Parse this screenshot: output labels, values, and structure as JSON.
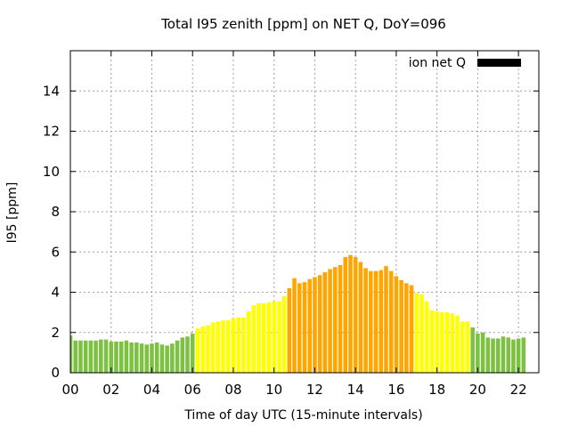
{
  "chart_data": {
    "type": "bar",
    "title": "Total I95 zenith [ppm] on NET Q, DoY=096",
    "xlabel": "Time of day UTC (15-minute intervals)",
    "ylabel": "I95 [ppm]",
    "legend": {
      "label": "ion net Q",
      "placement": "top-right",
      "color": "#000000"
    },
    "xlim": [
      0,
      23
    ],
    "ylim": [
      0,
      16
    ],
    "grid": true,
    "bar_interval_hours": 0.25,
    "x_tick_labels": [
      "00",
      "02",
      "04",
      "06",
      "08",
      "10",
      "12",
      "14",
      "16",
      "18",
      "20",
      "22"
    ],
    "x_tick_values": [
      0,
      2,
      4,
      6,
      8,
      10,
      12,
      14,
      16,
      18,
      20,
      22
    ],
    "y_tick_labels": [
      "0",
      "2",
      "4",
      "6",
      "8",
      "10",
      "12",
      "14"
    ],
    "y_tick_values": [
      0,
      2,
      4,
      6,
      8,
      10,
      12,
      14
    ],
    "color_levels": {
      "green": "#7dc142",
      "yellow": "#ffff00",
      "orange": "#ffa500"
    },
    "values": [
      1.85,
      1.6,
      1.6,
      1.6,
      1.6,
      1.6,
      1.65,
      1.65,
      1.55,
      1.55,
      1.55,
      1.6,
      1.5,
      1.5,
      1.45,
      1.4,
      1.45,
      1.5,
      1.4,
      1.35,
      1.45,
      1.6,
      1.75,
      1.8,
      1.95,
      2.2,
      2.3,
      2.35,
      2.5,
      2.55,
      2.6,
      2.6,
      2.7,
      2.75,
      2.75,
      3.05,
      3.35,
      3.45,
      3.45,
      3.5,
      3.55,
      3.55,
      3.8,
      4.2,
      4.7,
      4.45,
      4.5,
      4.65,
      4.75,
      4.85,
      5.0,
      5.15,
      5.25,
      5.35,
      5.75,
      5.85,
      5.75,
      5.5,
      5.2,
      5.05,
      5.05,
      5.1,
      5.3,
      5.05,
      4.8,
      4.6,
      4.45,
      4.35,
      3.95,
      3.9,
      3.55,
      3.1,
      3.05,
      3.0,
      3.0,
      2.95,
      2.85,
      2.55,
      2.55,
      2.25,
      1.95,
      2.0,
      1.75,
      1.7,
      1.7,
      1.8,
      1.75,
      1.65,
      1.7,
      1.75
    ],
    "colors": [
      "green",
      "green",
      "green",
      "green",
      "green",
      "green",
      "green",
      "green",
      "green",
      "green",
      "green",
      "green",
      "green",
      "green",
      "green",
      "green",
      "green",
      "green",
      "green",
      "green",
      "green",
      "green",
      "green",
      "green",
      "green",
      "yellow",
      "yellow",
      "yellow",
      "yellow",
      "yellow",
      "yellow",
      "yellow",
      "yellow",
      "yellow",
      "yellow",
      "yellow",
      "yellow",
      "yellow",
      "yellow",
      "yellow",
      "yellow",
      "yellow",
      "yellow",
      "orange",
      "orange",
      "orange",
      "orange",
      "orange",
      "orange",
      "orange",
      "orange",
      "orange",
      "orange",
      "orange",
      "orange",
      "orange",
      "orange",
      "orange",
      "orange",
      "orange",
      "orange",
      "orange",
      "orange",
      "orange",
      "orange",
      "orange",
      "orange",
      "orange",
      "yellow",
      "yellow",
      "yellow",
      "yellow",
      "yellow",
      "yellow",
      "yellow",
      "yellow",
      "yellow",
      "yellow",
      "yellow",
      "green",
      "green",
      "green",
      "green",
      "green",
      "green",
      "green",
      "green",
      "green",
      "green",
      "green"
    ]
  }
}
